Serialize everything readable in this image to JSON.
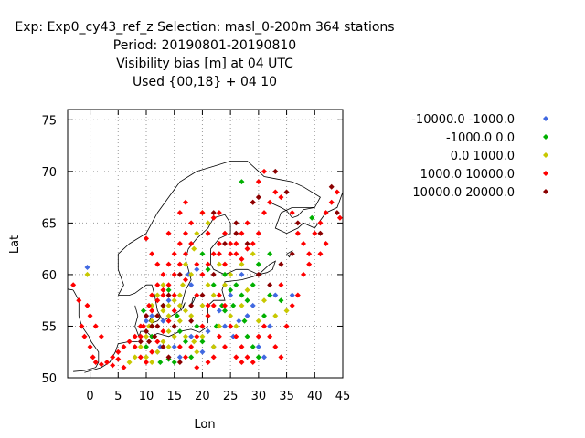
{
  "header": {
    "line1": "Exp: Exp0_cy43_ref_z   Selection: masl_0-200m    364 stations",
    "line2": "Period: 20190801-20190810",
    "line3": "Visibility bias [m] at  04 UTC",
    "line4": "Used {00,18} + 04 10"
  },
  "chart_data": {
    "type": "scatter",
    "xlabel": "Lon",
    "ylabel": "Lat",
    "xlim": [
      -4,
      45
    ],
    "ylim": [
      50,
      76
    ],
    "xticks": [
      0,
      5,
      10,
      15,
      20,
      25,
      30,
      35,
      40,
      45
    ],
    "yticks": [
      50,
      55,
      60,
      65,
      70,
      75
    ],
    "grid": true,
    "legend_position": "right",
    "series": [
      {
        "name": "-10000.0 -1000.0",
        "color": "#4169e1",
        "points": [
          [
            -0.5,
            60.7
          ],
          [
            12,
            52.5
          ],
          [
            15,
            53
          ],
          [
            16,
            52
          ],
          [
            18,
            54
          ],
          [
            20,
            52.5
          ],
          [
            22,
            53
          ],
          [
            25,
            58
          ],
          [
            25.5,
            54
          ],
          [
            26.5,
            55.5
          ],
          [
            28,
            56
          ],
          [
            29,
            57
          ],
          [
            30,
            53
          ],
          [
            31,
            52
          ],
          [
            33,
            58
          ],
          [
            17.5,
            60
          ],
          [
            19,
            60.5
          ],
          [
            10,
            55.5
          ],
          [
            11,
            56
          ],
          [
            13,
            55.5
          ],
          [
            12.5,
            53
          ],
          [
            21,
            54.5
          ],
          [
            24,
            55
          ],
          [
            36,
            58
          ],
          [
            27,
            60
          ],
          [
            14,
            57.5
          ],
          [
            18,
            59
          ],
          [
            23,
            56.5
          ],
          [
            32,
            55
          ]
        ]
      },
      {
        "name": "-1000.0 0.0",
        "color": "#00b000",
        "points": [
          [
            27,
            69
          ],
          [
            39.5,
            65.5
          ],
          [
            10,
            53
          ],
          [
            11,
            54
          ],
          [
            12.5,
            51.5
          ],
          [
            14,
            51.8
          ],
          [
            15,
            51.5
          ],
          [
            18,
            52
          ],
          [
            20,
            53.5
          ],
          [
            22.5,
            55
          ],
          [
            23.5,
            57
          ],
          [
            24,
            56.5
          ],
          [
            25,
            58.5
          ],
          [
            25.5,
            57
          ],
          [
            26,
            59
          ],
          [
            27,
            58
          ],
          [
            28,
            57.5
          ],
          [
            29,
            59
          ],
          [
            27.5,
            55.5
          ],
          [
            28,
            54
          ],
          [
            29,
            53
          ],
          [
            30,
            52
          ],
          [
            31,
            56
          ],
          [
            32,
            58
          ],
          [
            34,
            57.5
          ],
          [
            16,
            54.5
          ],
          [
            17,
            53.5
          ],
          [
            19,
            55
          ],
          [
            21,
            56
          ],
          [
            13,
            57
          ],
          [
            14,
            58.5
          ],
          [
            15.5,
            56
          ],
          [
            9.5,
            56.5
          ],
          [
            11,
            55
          ],
          [
            22,
            59
          ],
          [
            24,
            60
          ],
          [
            30,
            61
          ],
          [
            32,
            62
          ],
          [
            21,
            60.5
          ],
          [
            20,
            62
          ]
        ]
      },
      {
        "name": "0.0 1000.0",
        "color": "#c8c800",
        "points": [
          [
            -0.5,
            60
          ],
          [
            10,
            54
          ],
          [
            10.5,
            55
          ],
          [
            11,
            55.5
          ],
          [
            12,
            56
          ],
          [
            13,
            56.5
          ],
          [
            14,
            57
          ],
          [
            15,
            57.5
          ],
          [
            16,
            57
          ],
          [
            17,
            56.5
          ],
          [
            16,
            58
          ],
          [
            16.5,
            59
          ],
          [
            18,
            60
          ],
          [
            17,
            61
          ],
          [
            18.5,
            62.5
          ],
          [
            19,
            64
          ],
          [
            20,
            66
          ],
          [
            21,
            65
          ],
          [
            14,
            53
          ],
          [
            15,
            54
          ],
          [
            16,
            55.5
          ],
          [
            18,
            56
          ],
          [
            20,
            57
          ],
          [
            22,
            58
          ],
          [
            24,
            59
          ],
          [
            25,
            56
          ],
          [
            26,
            55
          ],
          [
            27,
            57
          ],
          [
            28,
            58.5
          ],
          [
            9,
            53
          ],
          [
            8,
            52
          ],
          [
            7,
            51.5
          ],
          [
            10,
            52
          ],
          [
            11,
            51.5
          ],
          [
            12,
            52.5
          ],
          [
            13,
            53.5
          ],
          [
            14,
            54.5
          ],
          [
            17,
            54
          ],
          [
            18.5,
            53.5
          ],
          [
            20,
            54
          ],
          [
            23,
            55
          ],
          [
            22,
            53
          ],
          [
            19,
            52.5
          ],
          [
            30,
            55.5
          ],
          [
            31,
            57.5
          ],
          [
            33,
            56
          ],
          [
            35,
            56.5
          ],
          [
            25,
            60
          ],
          [
            27,
            61
          ],
          [
            29,
            62
          ],
          [
            21,
            59
          ],
          [
            23,
            61
          ],
          [
            11,
            57
          ],
          [
            12,
            58
          ],
          [
            13,
            59
          ],
          [
            14,
            56
          ]
        ]
      },
      {
        "name": "1000.0 10000.0",
        "color": "#ff0000",
        "points": [
          [
            -3,
            59
          ],
          [
            -2,
            57.5
          ],
          [
            -1.5,
            55
          ],
          [
            -1,
            54
          ],
          [
            0,
            53
          ],
          [
            0.5,
            52
          ],
          [
            1,
            51.5
          ],
          [
            2,
            51.3
          ],
          [
            3,
            51.5
          ],
          [
            4,
            52
          ],
          [
            5,
            52.5
          ],
          [
            6,
            53
          ],
          [
            7,
            53.5
          ],
          [
            8,
            54
          ],
          [
            9,
            55
          ],
          [
            10,
            56
          ],
          [
            10.5,
            57
          ],
          [
            11,
            58
          ],
          [
            12,
            59
          ],
          [
            13,
            60
          ],
          [
            14,
            61
          ],
          [
            15,
            62
          ],
          [
            16,
            63
          ],
          [
            17,
            64
          ],
          [
            18,
            65
          ],
          [
            20,
            66
          ],
          [
            22,
            65.5
          ],
          [
            23,
            66
          ],
          [
            24,
            64
          ],
          [
            25,
            63
          ],
          [
            26,
            62
          ],
          [
            27,
            61.5
          ],
          [
            28,
            62.5
          ],
          [
            29,
            63
          ],
          [
            30,
            64
          ],
          [
            31,
            66
          ],
          [
            32,
            67
          ],
          [
            33,
            68
          ],
          [
            34,
            67.5
          ],
          [
            36,
            66
          ],
          [
            37,
            64
          ],
          [
            38,
            63
          ],
          [
            39,
            62
          ],
          [
            40,
            64
          ],
          [
            41,
            65
          ],
          [
            42,
            66
          ],
          [
            43,
            67
          ],
          [
            44,
            68
          ],
          [
            44.5,
            65.5
          ],
          [
            10,
            63.5
          ],
          [
            11,
            62
          ],
          [
            12,
            61
          ],
          [
            13,
            58
          ],
          [
            14,
            59
          ],
          [
            15,
            60
          ],
          [
            16,
            61
          ],
          [
            17,
            62
          ],
          [
            18,
            63
          ],
          [
            19,
            61
          ],
          [
            20,
            60
          ],
          [
            21,
            61
          ],
          [
            22,
            62
          ],
          [
            23,
            63
          ],
          [
            24,
            61
          ],
          [
            25,
            62
          ],
          [
            26,
            63
          ],
          [
            27,
            64
          ],
          [
            28,
            65
          ],
          [
            29,
            67
          ],
          [
            30,
            69
          ],
          [
            31,
            70
          ],
          [
            16,
            53
          ],
          [
            17,
            52
          ],
          [
            18,
            53
          ],
          [
            19,
            54
          ],
          [
            20,
            55
          ],
          [
            21,
            56
          ],
          [
            22,
            57
          ],
          [
            23,
            58
          ],
          [
            24,
            57
          ],
          [
            25,
            55
          ],
          [
            26,
            54
          ],
          [
            27,
            53
          ],
          [
            28,
            52
          ],
          [
            29,
            51.5
          ],
          [
            30,
            54
          ],
          [
            31,
            55
          ],
          [
            32,
            54
          ],
          [
            33,
            53
          ],
          [
            34,
            52
          ],
          [
            35,
            55
          ],
          [
            36,
            57
          ],
          [
            37,
            58
          ],
          [
            9,
            52
          ],
          [
            10,
            51.5
          ],
          [
            11,
            52.5
          ],
          [
            12,
            53.5
          ],
          [
            13,
            54.5
          ],
          [
            14,
            55.5
          ],
          [
            15,
            56.5
          ],
          [
            6,
            51
          ],
          [
            5,
            51.8
          ],
          [
            4,
            51.2
          ],
          [
            8,
            53
          ],
          [
            9,
            54
          ],
          [
            9.5,
            55
          ],
          [
            11,
            56.5
          ],
          [
            12,
            57.5
          ],
          [
            13,
            58.5
          ],
          [
            15,
            58
          ],
          [
            17,
            59.5
          ],
          [
            19,
            58
          ],
          [
            21,
            57
          ],
          [
            23,
            54
          ],
          [
            24,
            53
          ],
          [
            26,
            52
          ],
          [
            27,
            51.5
          ],
          [
            19,
            51
          ],
          [
            21,
            51.5
          ],
          [
            22,
            52
          ],
          [
            -0.5,
            57
          ],
          [
            0,
            56
          ],
          [
            1,
            55
          ],
          [
            2,
            54
          ],
          [
            16,
            66
          ],
          [
            17,
            67
          ],
          [
            14,
            64
          ],
          [
            21,
            64
          ],
          [
            23,
            62
          ],
          [
            34,
            59
          ],
          [
            38,
            60
          ],
          [
            39,
            61
          ],
          [
            41,
            62
          ],
          [
            42,
            63
          ]
        ]
      },
      {
        "name": "10000.0 20000.0",
        "color": "#8b0000",
        "points": [
          [
            10,
            54.5
          ],
          [
            11,
            55
          ],
          [
            12,
            56
          ],
          [
            10.5,
            53.5
          ],
          [
            13,
            57
          ],
          [
            14,
            58
          ],
          [
            22,
            66
          ],
          [
            26,
            64
          ],
          [
            29,
            67
          ],
          [
            30,
            67.5
          ],
          [
            33,
            70
          ],
          [
            35,
            68
          ],
          [
            37,
            65
          ],
          [
            41,
            64
          ],
          [
            43,
            68.5
          ],
          [
            44,
            66
          ],
          [
            10,
            56
          ],
          [
            11.5,
            54
          ],
          [
            9,
            53.5
          ],
          [
            12,
            55
          ],
          [
            14,
            52
          ],
          [
            16,
            51.5
          ],
          [
            18,
            55.5
          ],
          [
            20,
            58
          ],
          [
            22,
            60
          ],
          [
            24,
            63
          ],
          [
            26,
            65
          ],
          [
            28,
            63
          ],
          [
            30,
            60
          ],
          [
            32,
            59
          ],
          [
            34,
            61
          ],
          [
            36,
            62
          ],
          [
            18,
            57
          ],
          [
            16,
            60
          ],
          [
            15,
            55
          ],
          [
            13,
            53
          ]
        ]
      }
    ]
  },
  "colors": {
    "background": "#ffffff",
    "grid": "#9a9a9a",
    "axis": "#000000",
    "coastline": "#000000"
  }
}
